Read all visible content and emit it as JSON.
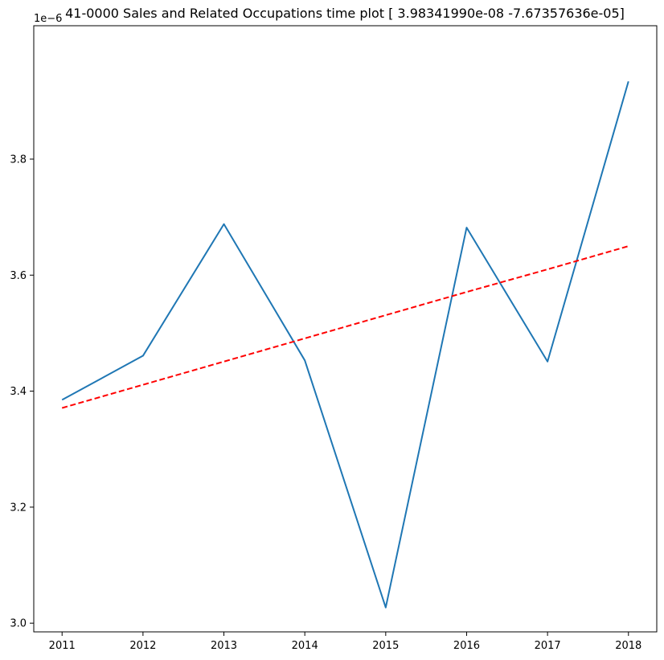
{
  "chart_data": {
    "type": "line",
    "title": "41-0000 Sales and Related Occupations time plot [ 3.98341990e-08 -7.67357636e-05]",
    "y_offset_label": "1e−6",
    "xlabel": "",
    "ylabel": "",
    "x": [
      2011,
      2012,
      2013,
      2014,
      2015,
      2016,
      2017,
      2018
    ],
    "x_ticks": [
      "2011",
      "2012",
      "2013",
      "2014",
      "2015",
      "2016",
      "2017",
      "2018"
    ],
    "xlim": [
      2010.65,
      2018.35
    ],
    "y_ticks": [
      3.0,
      3.2,
      3.4,
      3.6,
      3.8
    ],
    "y_tick_labels": [
      "3.0",
      "3.2",
      "3.4",
      "3.6",
      "3.8"
    ],
    "ylim": [
      2.985,
      4.03
    ],
    "y_unit_multiplier": "1e-6",
    "grid": false,
    "legend": "none",
    "series": [
      {
        "style": "solid",
        "color": "#1f77b4",
        "values": [
          3.385,
          3.461,
          3.688,
          3.453,
          3.027,
          3.682,
          3.451,
          3.934
        ]
      },
      {
        "style": "dashed",
        "color": "#ff0000",
        "values": [
          3.371,
          3.411,
          3.451,
          3.491,
          3.531,
          3.571,
          3.61,
          3.65
        ]
      }
    ]
  }
}
